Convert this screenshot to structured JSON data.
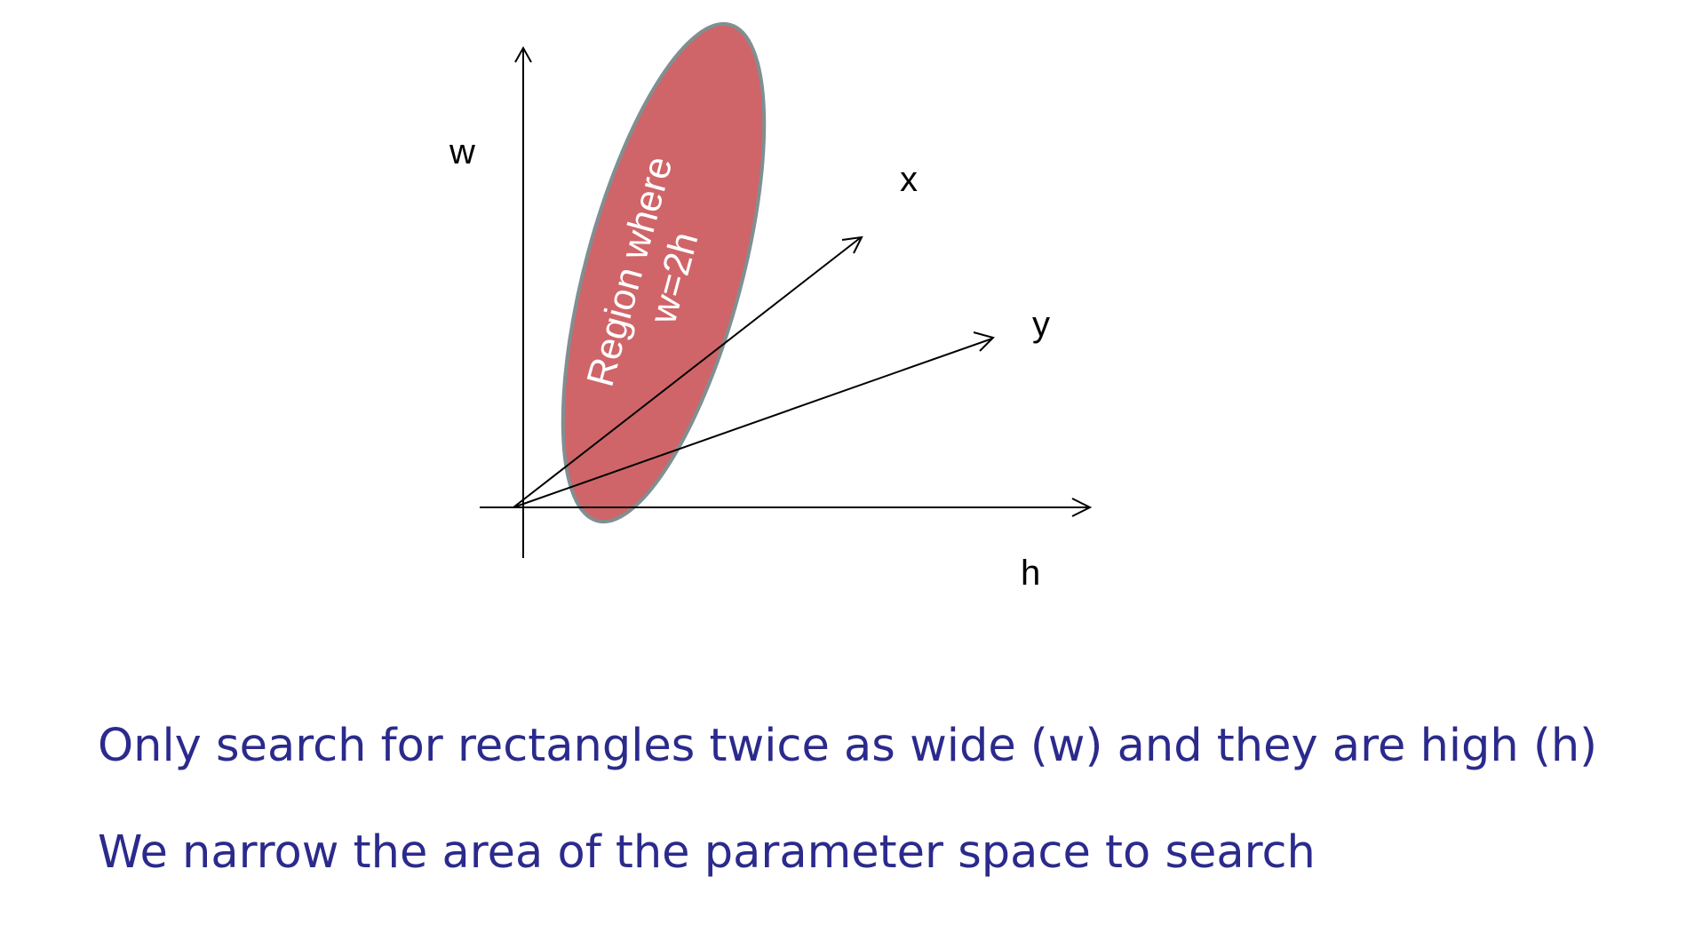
{
  "diagram": {
    "axes": {
      "vertical_label": "w",
      "horizontal_label": "h",
      "ray_x_label": "x",
      "ray_y_label": "y"
    },
    "region": {
      "label_line1": "Region where",
      "label_line2": "w=2h",
      "fill_color": "#CF6569",
      "stroke_color": "#7F8F92"
    }
  },
  "captions": [
    "Only search for rectangles twice as wide (w) and they are high (h)",
    "We narrow the area of the parameter space to search"
  ],
  "colors": {
    "caption": "#2B2A8C",
    "axes": "#000000"
  }
}
